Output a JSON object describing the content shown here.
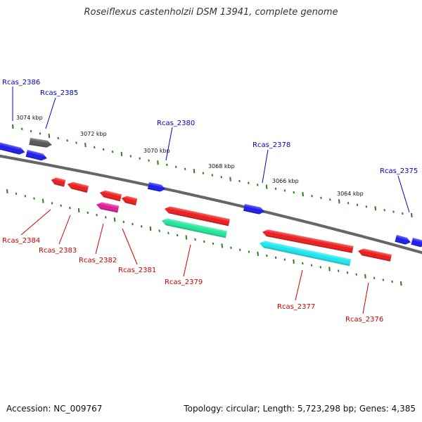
{
  "title": "Roseiflexus castenholzii DSM 13941, complete genome",
  "footer": {
    "accession": "Accession: NC_009767",
    "topology": "Topology: circular; Length: 5,723,298 bp; Genes: 4,385"
  },
  "colors": {
    "backbone": "#666666",
    "tick": "#2e7d1f",
    "forward_label": "#0000cc",
    "reverse_label": "#cc0000",
    "blue": "#1a1aee",
    "red": "#ee1a1a",
    "gray": "#555555",
    "magenta": "#e0189a",
    "green": "#1ee89a",
    "cyan": "#1ae6ee"
  },
  "scale_labels": [
    "3074 kbp",
    "3072 kbp",
    "3070 kbp",
    "3068 kbp",
    "3066 kbp",
    "3064 kbp"
  ],
  "genes_forward": [
    {
      "name": "Rcas_2386",
      "color": "blue"
    },
    {
      "name": "Rcas_2385",
      "color": "blue"
    },
    {
      "name": "Rcas_2380",
      "color": "blue"
    },
    {
      "name": "Rcas_2378",
      "color": "blue"
    },
    {
      "name": "Rcas_2375",
      "color": "blue"
    }
  ],
  "genes_reverse": [
    {
      "name": "Rcas_2384",
      "color": "red"
    },
    {
      "name": "Rcas_2383",
      "color": "red"
    },
    {
      "name": "Rcas_2382",
      "color": "magenta"
    },
    {
      "name": "Rcas_2381",
      "color": "red"
    },
    {
      "name": "Rcas_2379",
      "color": "green"
    },
    {
      "name": "Rcas_2377",
      "color": "cyan"
    },
    {
      "name": "Rcas_2376",
      "color": "red"
    }
  ]
}
